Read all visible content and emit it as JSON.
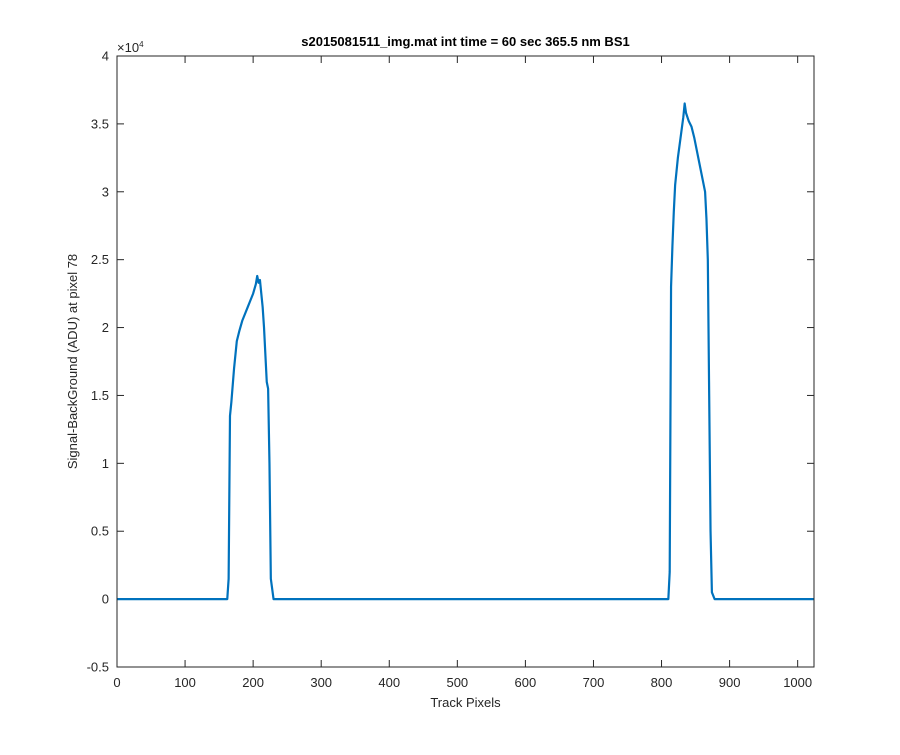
{
  "chart_data": {
    "type": "line",
    "title": "s2015081511_img.mat int time = 60 sec  365.5 nm BS1",
    "xlabel": "Track Pixels",
    "ylabel": "Signal-BackGround (ADU) at pixel 78",
    "xlim": [
      0,
      1024
    ],
    "ylim": [
      -5000,
      40000
    ],
    "x_ticks": [
      0,
      100,
      200,
      300,
      400,
      500,
      600,
      700,
      800,
      900,
      1000
    ],
    "x_tick_labels": [
      "0",
      "100",
      "200",
      "300",
      "400",
      "500",
      "600",
      "700",
      "800",
      "900",
      "1000"
    ],
    "y_ticks": [
      -0.5,
      0,
      0.5,
      1,
      1.5,
      2,
      2.5,
      3,
      3.5,
      4
    ],
    "y_tick_labels": [
      "-0.5",
      "0",
      "0.5",
      "1",
      "1.5",
      "2",
      "2.5",
      "3",
      "3.5",
      "4"
    ],
    "y_exponent_label": "×10",
    "y_exponent_power": "4",
    "grid": false,
    "line_color": "#0072BD",
    "series": [
      {
        "x": [
          0,
          50,
          100,
          150,
          162,
          164,
          166,
          168,
          172,
          176,
          180,
          184,
          188,
          192,
          196,
          200,
          204,
          206,
          208,
          210,
          212,
          214,
          216,
          218,
          220,
          222,
          224,
          226,
          230,
          260,
          300,
          400,
          500,
          600,
          700,
          800,
          810,
          812,
          814,
          816,
          818,
          820,
          824,
          828,
          832,
          834,
          836,
          840,
          844,
          848,
          852,
          856,
          860,
          864,
          866,
          868,
          870,
          872,
          874,
          878,
          900,
          1000,
          1024
        ],
        "y": [
          0,
          0,
          0,
          0,
          0,
          1500,
          13500,
          14500,
          17000,
          19000,
          19800,
          20500,
          21000,
          21500,
          22000,
          22500,
          23200,
          23800,
          23300,
          23500,
          22500,
          21500,
          20000,
          18000,
          16000,
          15500,
          10000,
          1500,
          0,
          0,
          0,
          0,
          0,
          0,
          0,
          0,
          0,
          2000,
          23000,
          26000,
          28500,
          30500,
          32500,
          34000,
          35500,
          36500,
          35800,
          35200,
          34800,
          34000,
          33000,
          32000,
          31000,
          30000,
          28000,
          25000,
          15000,
          5000,
          500,
          0,
          0,
          0,
          0
        ]
      }
    ]
  }
}
